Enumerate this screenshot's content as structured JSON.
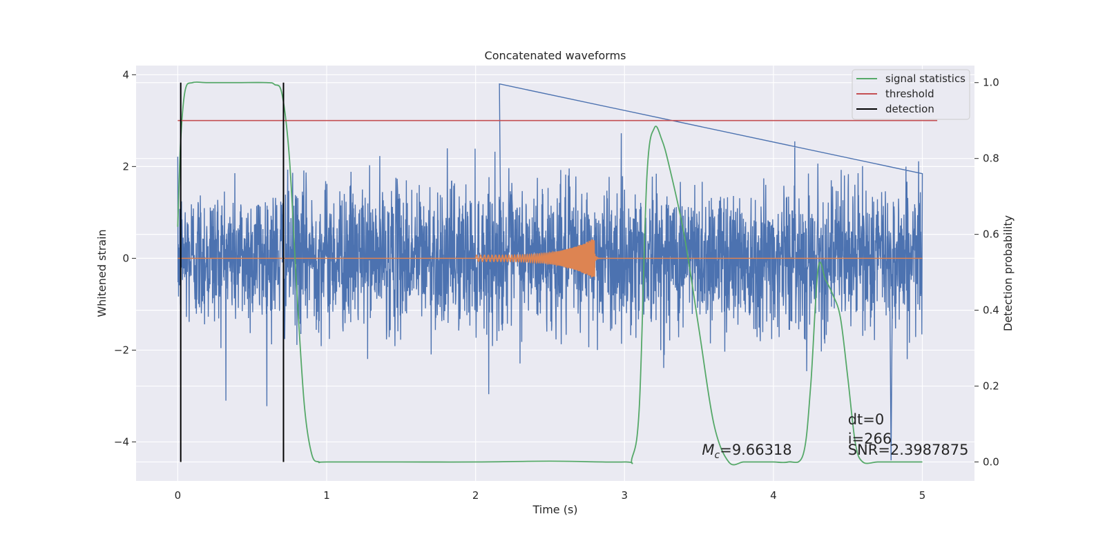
{
  "chart_data": {
    "type": "line",
    "title": "Concatenated waveforms",
    "xlabel": "Time (s)",
    "ylabel_left": "Whitened strain",
    "ylabel_right": "Detection probability",
    "xlim": [
      -0.28,
      5.35
    ],
    "ylim_left": [
      -4.85,
      4.2
    ],
    "ylim_right": [
      -0.05,
      1.045
    ],
    "x_ticks": [
      0,
      1,
      2,
      3,
      4,
      5
    ],
    "y_left_ticks": [
      -4,
      -2,
      0,
      2,
      4
    ],
    "y_right_ticks": [
      0.0,
      0.2,
      0.4,
      0.6,
      0.8,
      1.0
    ],
    "grid": true,
    "legend_position": "top-right",
    "colors": {
      "background": "#eaeaf2",
      "grid": "#ffffff",
      "strain": "#4c72b0",
      "template": "#dd8452",
      "signal_statistics": "#55a868",
      "threshold": "#c44e52",
      "detection": "#000000"
    },
    "series": [
      {
        "name": "strain",
        "axis": "left",
        "description_source": "noise, x from 0 to 5 s",
        "x_range": [
          0,
          5
        ],
        "typical_amplitude": 1.3,
        "max_peak": 3.8,
        "min_peak": -4.4
      },
      {
        "name": "template",
        "axis": "left",
        "x_range": [
          2.0,
          2.8
        ],
        "peak_amplitude": 0.45
      },
      {
        "name": "signal statistics",
        "axis": "right",
        "x": [
          0,
          0.02,
          0.05,
          0.1,
          0.2,
          0.4,
          0.6,
          0.65,
          0.7,
          0.75,
          0.8,
          0.85,
          0.9,
          0.95,
          1.0,
          1.5,
          2.0,
          2.5,
          3.0,
          3.05,
          3.1,
          3.15,
          3.2,
          3.25,
          3.3,
          3.4,
          3.5,
          3.6,
          3.7,
          3.8,
          3.9,
          4.0,
          4.1,
          4.2,
          4.25,
          4.3,
          4.35,
          4.4,
          4.45,
          4.5,
          4.55,
          4.6,
          4.7,
          4.8,
          4.9,
          5.0
        ],
        "values": [
          0.62,
          0.85,
          0.98,
          1.0,
          1.0,
          1.0,
          1.0,
          0.995,
          0.97,
          0.8,
          0.45,
          0.15,
          0.02,
          0.0,
          0.0,
          0.0,
          0.0,
          0.002,
          0.0,
          0.01,
          0.15,
          0.75,
          0.88,
          0.85,
          0.78,
          0.6,
          0.35,
          0.1,
          0.0,
          0.0,
          0.0,
          0.0,
          0.0,
          0.02,
          0.2,
          0.51,
          0.48,
          0.44,
          0.38,
          0.22,
          0.05,
          0.0,
          0.0,
          0.0,
          0.0,
          0.0
        ]
      },
      {
        "name": "threshold",
        "axis": "right",
        "x": [
          0,
          5.1
        ],
        "values": [
          0.9,
          0.9
        ]
      },
      {
        "name": "detection",
        "axis": "right",
        "x": [
          0.02,
          0.71
        ],
        "values": [
          1.0,
          1.0
        ]
      }
    ],
    "legend": [
      "signal statistics",
      "threshold",
      "detection"
    ],
    "annotations": {
      "mc": "=9.66318",
      "mc_symbol": "M",
      "mc_sub": "c",
      "dt": "dt=0",
      "i": "i=266",
      "snr": "SNR=2.3987875"
    }
  }
}
